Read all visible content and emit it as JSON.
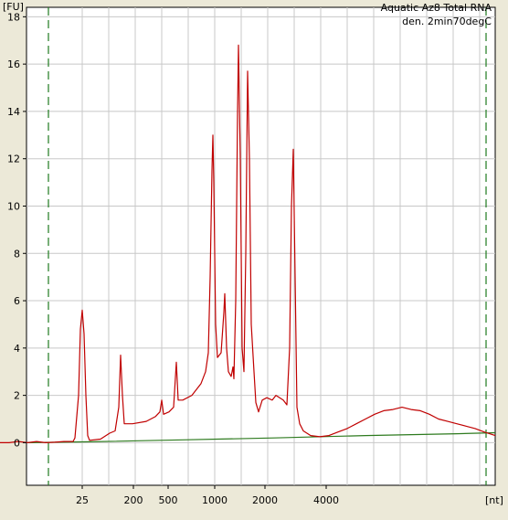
{
  "chart_data": {
    "type": "line",
    "title_lines": [
      "Aquatic Az8 Total RNA",
      "den. 2min70degC"
    ],
    "y_unit_label": "[FU]",
    "x_unit_label": "[nt]",
    "ylim": [
      -1.8,
      18.4
    ],
    "y_ticks": [
      0,
      2,
      4,
      6,
      8,
      10,
      12,
      14,
      16,
      18
    ],
    "x_ticks": [
      {
        "label": "25",
        "x": 25
      },
      {
        "label": "200",
        "x": 200
      },
      {
        "label": "500",
        "x": 500
      },
      {
        "label": "1000",
        "x": 1000
      },
      {
        "label": "2000",
        "x": 2000
      },
      {
        "label": "4000",
        "x": 4000
      }
    ],
    "grid": true,
    "markers": [
      "lower-marker",
      "upper-marker"
    ],
    "series": [
      {
        "color": "#c00000",
        "points": [
          [
            0,
            0.0
          ],
          [
            10,
            0.0
          ],
          [
            20,
            0.05
          ],
          [
            30,
            0.0
          ],
          [
            40,
            0.05
          ],
          [
            50,
            0.0
          ],
          [
            60,
            0.02
          ],
          [
            70,
            0.05
          ],
          [
            80,
            0.05
          ],
          [
            82,
            0.2
          ],
          [
            86,
            2.0
          ],
          [
            88,
            4.8
          ],
          [
            90,
            5.6
          ],
          [
            92,
            4.6
          ],
          [
            94,
            2.0
          ],
          [
            96,
            0.3
          ],
          [
            98,
            0.1
          ],
          [
            110,
            0.15
          ],
          [
            120,
            0.4
          ],
          [
            126,
            0.5
          ],
          [
            130,
            1.5
          ],
          [
            132,
            3.7
          ],
          [
            134,
            2.0
          ],
          [
            136,
            0.8
          ],
          [
            145,
            0.8
          ],
          [
            160,
            0.9
          ],
          [
            170,
            1.1
          ],
          [
            175,
            1.3
          ],
          [
            177,
            1.8
          ],
          [
            179,
            1.2
          ],
          [
            185,
            1.3
          ],
          [
            190,
            1.5
          ],
          [
            193,
            3.4
          ],
          [
            195,
            1.8
          ],
          [
            200,
            1.8
          ],
          [
            210,
            2.0
          ],
          [
            220,
            2.5
          ],
          [
            225,
            3.0
          ],
          [
            228,
            3.8
          ],
          [
            230,
            7.0
          ],
          [
            232,
            11.5
          ],
          [
            233,
            13.0
          ],
          [
            234,
            11.0
          ],
          [
            236,
            5.0
          ],
          [
            238,
            3.6
          ],
          [
            242,
            3.8
          ],
          [
            245,
            5.5
          ],
          [
            246,
            6.3
          ],
          [
            248,
            4.0
          ],
          [
            250,
            3.0
          ],
          [
            253,
            2.8
          ],
          [
            255,
            3.2
          ],
          [
            256,
            2.7
          ],
          [
            258,
            6.0
          ],
          [
            260,
            14.0
          ],
          [
            261,
            16.8
          ],
          [
            263,
            12.0
          ],
          [
            265,
            4.0
          ],
          [
            267,
            3.0
          ],
          [
            269,
            8.0
          ],
          [
            271,
            15.7
          ],
          [
            273,
            12.0
          ],
          [
            275,
            5.0
          ],
          [
            278,
            3.0
          ],
          [
            280,
            1.7
          ],
          [
            283,
            1.3
          ],
          [
            287,
            1.8
          ],
          [
            292,
            1.9
          ],
          [
            298,
            1.8
          ],
          [
            302,
            2.0
          ],
          [
            310,
            1.8
          ],
          [
            314,
            1.6
          ],
          [
            317,
            4.0
          ],
          [
            319,
            10.0
          ],
          [
            321,
            12.4
          ],
          [
            323,
            7.0
          ],
          [
            325,
            1.5
          ],
          [
            328,
            0.8
          ],
          [
            332,
            0.5
          ],
          [
            340,
            0.3
          ],
          [
            350,
            0.25
          ],
          [
            360,
            0.3
          ],
          [
            370,
            0.45
          ],
          [
            380,
            0.6
          ],
          [
            390,
            0.8
          ],
          [
            400,
            1.0
          ],
          [
            410,
            1.2
          ],
          [
            420,
            1.35
          ],
          [
            430,
            1.4
          ],
          [
            440,
            1.5
          ],
          [
            450,
            1.4
          ],
          [
            460,
            1.35
          ],
          [
            470,
            1.2
          ],
          [
            480,
            1.0
          ],
          [
            490,
            0.9
          ],
          [
            500,
            0.8
          ],
          [
            510,
            0.7
          ],
          [
            520,
            0.6
          ],
          [
            530,
            0.45
          ],
          [
            542,
            0.3
          ]
        ]
      },
      {
        "color": "#2d7a1e",
        "points": [
          [
            30,
            0.0
          ],
          [
            100,
            0.04
          ],
          [
            200,
            0.12
          ],
          [
            300,
            0.2
          ],
          [
            400,
            0.3
          ],
          [
            500,
            0.38
          ],
          [
            542,
            0.42
          ]
        ]
      }
    ]
  }
}
